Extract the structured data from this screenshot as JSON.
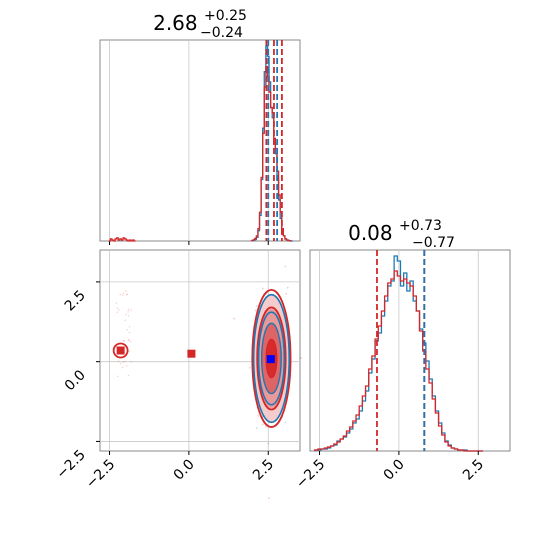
{
  "chart_data": [
    {
      "panel": "top-left",
      "type": "histogram",
      "parameter_index": 0,
      "title": {
        "median": "2.68",
        "plus": "+0.25",
        "minus": "−0.24"
      },
      "xlim": [
        -2.8,
        3.5
      ],
      "x_ticks_visible": false,
      "grid": true,
      "quantile_lines": [
        {
          "x": 2.44,
          "color": "#d62728",
          "style": "dashed"
        },
        {
          "x": 2.68,
          "color": "#d62728",
          "style": "dashed"
        },
        {
          "x": 2.93,
          "color": "#d62728",
          "style": "dashed"
        },
        {
          "x": 2.5,
          "color": "#1f77b4",
          "style": "dashed"
        },
        {
          "x": 2.78,
          "color": "#1f77b4",
          "style": "dashed"
        }
      ],
      "series": [
        {
          "color": "#1f77b4",
          "x": [
            2.0,
            2.05,
            2.1,
            2.15,
            2.2,
            2.25,
            2.3,
            2.35,
            2.4,
            2.45,
            2.5,
            2.55,
            2.6,
            2.65,
            2.7,
            2.75,
            2.8,
            2.85,
            2.9,
            2.95,
            3.0,
            3.05,
            3.1,
            3.15,
            3.2,
            3.25
          ],
          "values": [
            0.3,
            0.8,
            1.5,
            3.5,
            10,
            25,
            60,
            110,
            165,
            190,
            180,
            155,
            130,
            120,
            95,
            85,
            60,
            40,
            22,
            10,
            5,
            2,
            1,
            0.5,
            0.2,
            0
          ]
        },
        {
          "color": "#d62728",
          "x": [
            -2.5,
            -2.45,
            -2.4,
            -2.35,
            -2.3,
            -2.25,
            -2.2,
            -2.15,
            -2.1,
            -2.05,
            -2.0,
            -1.95,
            -1.9,
            -1.85,
            -1.8,
            -1.75,
            -1.7,
            2.0,
            2.05,
            2.1,
            2.15,
            2.2,
            2.25,
            2.3,
            2.35,
            2.4,
            2.45,
            2.5,
            2.55,
            2.6,
            2.65,
            2.7,
            2.75,
            2.8,
            2.85,
            2.9,
            2.95,
            3.0,
            3.05,
            3.1,
            3.15,
            3.2,
            3.25
          ],
          "values": [
            0,
            2,
            1,
            0,
            2,
            3,
            1,
            2,
            1,
            3,
            2,
            1,
            0,
            1,
            0,
            1,
            0,
            0.5,
            1.2,
            2.5,
            5,
            12,
            28,
            62,
            105,
            150,
            170,
            160,
            145,
            130,
            125,
            100,
            90,
            68,
            45,
            28,
            12,
            5,
            2,
            1,
            0.5,
            0
          ]
        }
      ]
    },
    {
      "panel": "bottom-left",
      "type": "contour",
      "xlim": [
        -2.8,
        3.5
      ],
      "ylim": [
        -2.8,
        3.5
      ],
      "x_ticks": [
        "−2.5",
        "0.0",
        "2.5"
      ],
      "y_ticks": [
        "−2.5",
        "0.0",
        "2.5"
      ],
      "grid": true,
      "contour_center": [
        2.6,
        0.1
      ],
      "contour_sigmas": [
        0.28,
        1.0
      ],
      "markers": [
        {
          "x": -2.15,
          "y": 0.35,
          "color": "#d62728",
          "shape": "square"
        },
        {
          "x": 0.08,
          "y": 0.25,
          "color": "#d62728",
          "shape": "square"
        },
        {
          "x": 2.58,
          "y": 0.08,
          "color": "#0000ff",
          "shape": "square"
        }
      ],
      "secondary_mode": {
        "x": -2.15,
        "y": 0.35,
        "color": "#d62728"
      }
    },
    {
      "panel": "bottom-right",
      "type": "histogram",
      "parameter_index": 1,
      "title": {
        "median": "0.08",
        "plus": "+0.73",
        "minus": "−0.77"
      },
      "xlim": [
        -2.8,
        3.5
      ],
      "x_ticks": [
        "−2.5",
        "0.0",
        "2.5"
      ],
      "grid": true,
      "quantile_lines": [
        {
          "x": -0.69,
          "color": "#d62728",
          "style": "dashed"
        },
        {
          "x": 0.8,
          "color": "#d62728",
          "style": "dashed"
        },
        {
          "x": 0.8,
          "color": "#1f77b4",
          "style": "dashed"
        }
      ],
      "series": [
        {
          "color": "#1f77b4",
          "x": [
            -2.6,
            -2.5,
            -2.4,
            -2.3,
            -2.2,
            -2.1,
            -2.0,
            -1.9,
            -1.8,
            -1.7,
            -1.6,
            -1.5,
            -1.4,
            -1.3,
            -1.2,
            -1.1,
            -1.0,
            -0.9,
            -0.8,
            -0.7,
            -0.6,
            -0.5,
            -0.4,
            -0.3,
            -0.2,
            -0.1,
            0.0,
            0.1,
            0.2,
            0.3,
            0.4,
            0.5,
            0.6,
            0.7,
            0.8,
            0.9,
            1.0,
            1.1,
            1.2,
            1.3,
            1.4,
            1.5,
            1.6,
            1.7,
            1.8,
            1.9,
            2.0,
            2.1,
            2.2,
            2.3,
            2.4,
            2.5,
            2.6
          ],
          "values": [
            1,
            1,
            2,
            2,
            3,
            5,
            6,
            10,
            12,
            14,
            18,
            22,
            28,
            32,
            40,
            50,
            60,
            78,
            92,
            110,
            118,
            135,
            150,
            165,
            170,
            195,
            190,
            165,
            178,
            160,
            170,
            150,
            140,
            122,
            108,
            90,
            72,
            55,
            40,
            28,
            18,
            10,
            6,
            3,
            2,
            1,
            1,
            1,
            0,
            0,
            0,
            0,
            0
          ]
        },
        {
          "color": "#d62728",
          "x": [
            -2.6,
            -2.5,
            -2.4,
            -2.3,
            -2.2,
            -2.1,
            -2.0,
            -1.9,
            -1.8,
            -1.7,
            -1.6,
            -1.5,
            -1.4,
            -1.3,
            -1.2,
            -1.1,
            -1.0,
            -0.9,
            -0.8,
            -0.7,
            -0.6,
            -0.5,
            -0.4,
            -0.3,
            -0.2,
            -0.1,
            0.0,
            0.1,
            0.2,
            0.3,
            0.4,
            0.5,
            0.6,
            0.7,
            0.8,
            0.9,
            1.0,
            1.1,
            1.2,
            1.3,
            1.4,
            1.5,
            1.6,
            1.7,
            1.8,
            1.9,
            2.0,
            2.1,
            2.2,
            2.3,
            2.4,
            2.5,
            2.6
          ],
          "values": [
            1,
            2,
            2,
            3,
            4,
            5,
            7,
            9,
            12,
            15,
            20,
            24,
            30,
            36,
            45,
            55,
            65,
            82,
            95,
            112,
            125,
            140,
            155,
            168,
            172,
            180,
            175,
            170,
            172,
            168,
            165,
            155,
            140,
            120,
            100,
            82,
            68,
            52,
            38,
            25,
            16,
            9,
            5,
            3,
            2,
            1,
            1,
            0,
            0,
            0,
            0,
            0,
            0
          ]
        }
      ]
    }
  ]
}
